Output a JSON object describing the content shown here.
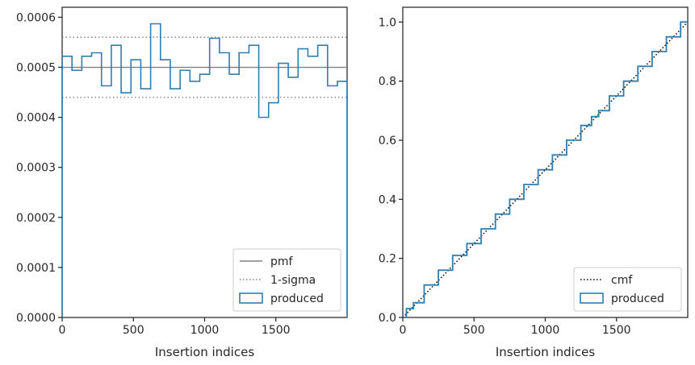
{
  "colors": {
    "produced": "#2e7eb0",
    "pmf": "#808080",
    "sigma": "#808080",
    "cmf": "#000000",
    "axis": "#262626"
  },
  "chart_data": [
    {
      "type": "line",
      "xlabel": "Insertion indices",
      "ylabel": "",
      "xlim": [
        0,
        2000
      ],
      "ylim": [
        0,
        0.00062
      ],
      "xticks": [
        0,
        500,
        1000,
        1500
      ],
      "xtick_labels": [
        "0",
        "500",
        "1000",
        "1500"
      ],
      "yticks": [
        0,
        0.0001,
        0.0002,
        0.0003,
        0.0004,
        0.0005,
        0.0006
      ],
      "ytick_labels": [
        "0.0000",
        "0.0001",
        "0.0002",
        "0.0003",
        "0.0004",
        "0.0005",
        "0.0006"
      ],
      "legend_position": "lower-right",
      "series": [
        {
          "name": "pmf",
          "style": "solid",
          "x": [
            0,
            2000
          ],
          "values": [
            0.0005,
            0.0005
          ]
        },
        {
          "name": "1-sigma",
          "style": "dotted",
          "x": [
            0,
            2000
          ],
          "values": [
            0.00056,
            0.00056
          ],
          "values_lower": [
            0.00044,
            0.00044
          ]
        },
        {
          "name": "produced",
          "style": "step-histogram",
          "bin_edges": [
            0,
            69,
            138,
            207,
            276,
            345,
            414,
            483,
            552,
            621,
            690,
            759,
            828,
            897,
            966,
            1035,
            1104,
            1173,
            1242,
            1311,
            1380,
            1449,
            1518,
            1587,
            1656,
            1725,
            1794,
            1863,
            1932,
            2000
          ],
          "values": [
            0.000522,
            0.000494,
            0.000522,
            0.000529,
            0.000463,
            0.000544,
            0.000449,
            0.000515,
            0.000457,
            0.000587,
            0.000515,
            0.000457,
            0.000494,
            0.000472,
            0.000486,
            0.000558,
            0.000529,
            0.000486,
            0.000529,
            0.000544,
            0.0004,
            0.000429,
            0.000508,
            0.00048,
            0.000537,
            0.000522,
            0.000544,
            0.000463,
            0.000472
          ]
        }
      ]
    },
    {
      "type": "line",
      "xlabel": "Insertion indices",
      "ylabel": "",
      "xlim": [
        0,
        2000
      ],
      "ylim": [
        0,
        1.05
      ],
      "xticks": [
        0,
        500,
        1000,
        1500
      ],
      "xtick_labels": [
        "0",
        "500",
        "1000",
        "1500"
      ],
      "yticks": [
        0,
        0.2,
        0.4,
        0.6,
        0.8,
        1.0
      ],
      "ytick_labels": [
        "0.0",
        "0.2",
        "0.4",
        "0.6",
        "0.8",
        "1.0"
      ],
      "legend_position": "lower-right",
      "series": [
        {
          "name": "cmf",
          "style": "dotted",
          "x": [
            0,
            2000
          ],
          "values": [
            0,
            1.0
          ]
        },
        {
          "name": "produced",
          "style": "step-cumulative",
          "x": [
            0,
            50,
            100,
            200,
            300,
            400,
            500,
            600,
            700,
            800,
            900,
            1000,
            1100,
            1200,
            1300,
            1350,
            1400,
            1500,
            1600,
            1700,
            1800,
            1900,
            2000
          ],
          "values": [
            0,
            0.03,
            0.05,
            0.11,
            0.16,
            0.21,
            0.25,
            0.3,
            0.35,
            0.4,
            0.45,
            0.5,
            0.55,
            0.6,
            0.65,
            0.68,
            0.7,
            0.75,
            0.8,
            0.85,
            0.9,
            0.95,
            1.0
          ]
        }
      ]
    }
  ]
}
